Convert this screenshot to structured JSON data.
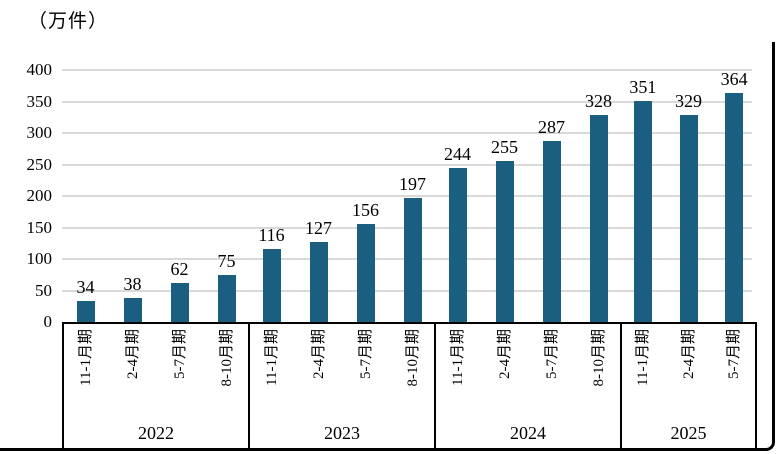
{
  "unit_label": "（万件）",
  "colors": {
    "bar": "#1A5F7F",
    "gridline": "#D9D9D9",
    "axis_border": "#000000",
    "text": "#000000"
  },
  "y_axis": {
    "ticks": [
      "400",
      "350",
      "300",
      "250",
      "200",
      "150",
      "100",
      "50",
      "0"
    ]
  },
  "chart_data": {
    "type": "bar",
    "title": "",
    "unit": "（万件）",
    "xlabel": "",
    "ylabel": "（万件）",
    "ylim": [
      0,
      400
    ],
    "ytick_step": 50,
    "grid": true,
    "legend": "none",
    "bar_color": "#1A5F7F",
    "groups": [
      {
        "year": "2022",
        "categories": [
          "11-1月期",
          "2-4月期",
          "5-7月期",
          "8-10月期"
        ],
        "values": [
          34,
          38,
          62,
          75
        ]
      },
      {
        "year": "2023",
        "categories": [
          "11-1月期",
          "2-4月期",
          "5-7月期",
          "8-10月期"
        ],
        "values": [
          116,
          127,
          156,
          197
        ]
      },
      {
        "year": "2024",
        "categories": [
          "11-1月期",
          "2-4月期",
          "5-7月期",
          "8-10月期"
        ],
        "values": [
          244,
          255,
          287,
          328
        ]
      },
      {
        "year": "2025",
        "categories": [
          "11-1月期",
          "2-4月期",
          "5-7月期"
        ],
        "values": [
          351,
          329,
          364
        ]
      }
    ]
  }
}
